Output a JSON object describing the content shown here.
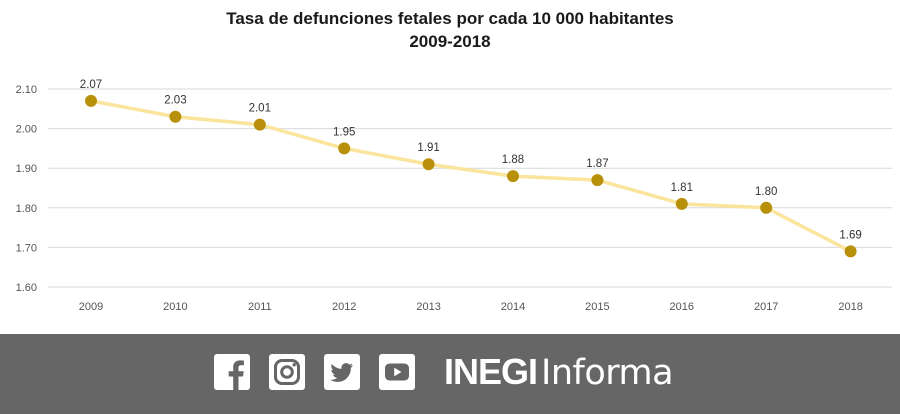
{
  "chart_data": {
    "type": "line",
    "title": "Tasa de defunciones fetales por cada 10 000 habitantes",
    "subtitle": "2009-2018",
    "categories": [
      "2009",
      "2010",
      "2011",
      "2012",
      "2013",
      "2014",
      "2015",
      "2016",
      "2017",
      "2018"
    ],
    "values": [
      2.07,
      2.03,
      2.01,
      1.95,
      1.91,
      1.88,
      1.87,
      1.81,
      1.8,
      1.69
    ],
    "data_labels": [
      "2.07",
      "2.03",
      "2.01",
      "1.95",
      "1.91",
      "1.88",
      "1.87",
      "1.81",
      "1.80",
      "1.69"
    ],
    "ylim": [
      1.6,
      2.1
    ],
    "yticks": [
      "1.60",
      "1.70",
      "1.80",
      "1.90",
      "2.00",
      "2.10"
    ],
    "ytick_values": [
      1.6,
      1.7,
      1.8,
      1.9,
      2.0,
      2.1
    ],
    "grid": true,
    "line_color": "#fbe49c",
    "marker_color": "#b8900a",
    "xlabel": "",
    "ylabel": ""
  },
  "footer": {
    "icons": [
      "facebook-icon",
      "instagram-icon",
      "twitter-icon",
      "youtube-icon"
    ],
    "brand_bold": "INEGI",
    "brand_light": "Informa",
    "background": "#666666"
  }
}
